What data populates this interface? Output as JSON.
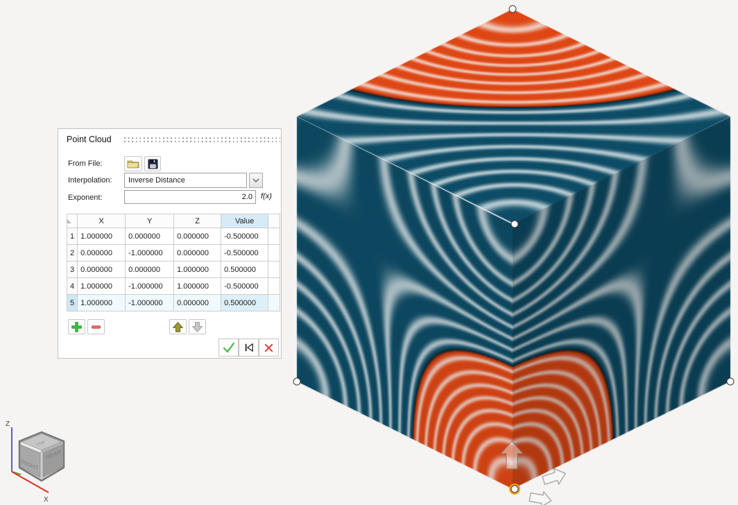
{
  "panel": {
    "title": "Point Cloud",
    "from_file": {
      "label": "From File:"
    },
    "interpolation": {
      "label": "Interpolation:",
      "value": "Inverse Distance"
    },
    "exponent": {
      "label": "Exponent:",
      "value": "2.0",
      "fx": "f(x)"
    },
    "table": {
      "headers": [
        "X",
        "Y",
        "Z",
        "Value"
      ],
      "rows": [
        [
          "1.000000",
          "0.000000",
          "0.000000",
          "-0.500000"
        ],
        [
          "0.000000",
          "-1.000000",
          "0.000000",
          "-0.500000"
        ],
        [
          "0.000000",
          "0.000000",
          "1.000000",
          "0.500000"
        ],
        [
          "1.000000",
          "-1.000000",
          "1.000000",
          "-0.500000"
        ],
        [
          "1.000000",
          "-1.000000",
          "0.000000",
          "0.500000"
        ]
      ],
      "selected_row": 5,
      "selected_column": "Value"
    }
  },
  "viewport": {
    "points": [
      {
        "x": 1,
        "y": 0,
        "z": 0,
        "value": -0.5,
        "selected": false
      },
      {
        "x": 0,
        "y": -1,
        "z": 0,
        "value": -0.5,
        "selected": false
      },
      {
        "x": 0,
        "y": 0,
        "z": 1,
        "value": 0.5,
        "selected": false
      },
      {
        "x": 1,
        "y": -1,
        "z": 1,
        "value": -0.5,
        "selected": false
      },
      {
        "x": 1,
        "y": -1,
        "z": 0,
        "value": 0.5,
        "selected": true
      }
    ],
    "interpolation": {
      "method": "inverse-distance",
      "exponent": 2.0
    },
    "stripe_period": 0.0625,
    "colors": {
      "negative": "#0d4c66",
      "positive": "#de4614",
      "stripe": "#f6f9f9",
      "selected_ring": "#f0a01c"
    }
  },
  "nav_cube": {
    "top": "TOP",
    "right": "RIGHT",
    "rear": "REAR",
    "axis_x": "X",
    "axis_z": "Z",
    "axis_x_color": "#e03020",
    "axis_y_color": "#2eb82e",
    "axis_z_color": "#5b5bd6"
  }
}
